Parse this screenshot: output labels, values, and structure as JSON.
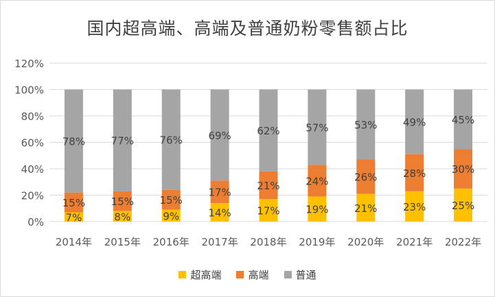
{
  "chart_data": {
    "type": "bar",
    "stacked": true,
    "title": "国内超高端、高端及普通奶粉零售额占比",
    "categories": [
      "2014年",
      "2015年",
      "2016年",
      "2017年",
      "2018年",
      "2019年",
      "2020年",
      "2021年",
      "2022年"
    ],
    "series": [
      {
        "name": "超高端",
        "color": "#ffc000",
        "values": [
          7,
          8,
          9,
          14,
          17,
          19,
          21,
          23,
          25
        ],
        "labels": [
          "7%",
          "8%",
          "9%",
          "14%",
          "17%",
          "19%",
          "21%",
          "23%",
          "25%"
        ]
      },
      {
        "name": "高端",
        "color": "#ed7d31",
        "values": [
          15,
          15,
          15,
          17,
          21,
          24,
          26,
          28,
          30
        ],
        "labels": [
          "15%",
          "15%",
          "15%",
          "17%",
          "21%",
          "24%",
          "26%",
          "28%",
          "30%"
        ]
      },
      {
        "name": "普通",
        "color": "#a5a5a5",
        "values": [
          78,
          77,
          76,
          69,
          62,
          57,
          53,
          49,
          45
        ],
        "labels": [
          "78%",
          "77%",
          "76%",
          "69%",
          "62%",
          "57%",
          "53%",
          "49%",
          "45%"
        ]
      }
    ],
    "yticks": [
      "0%",
      "20%",
      "40%",
      "60%",
      "80%",
      "100%",
      "120%"
    ],
    "ylim": [
      0,
      120
    ],
    "grid": true,
    "legend_position": "bottom"
  }
}
